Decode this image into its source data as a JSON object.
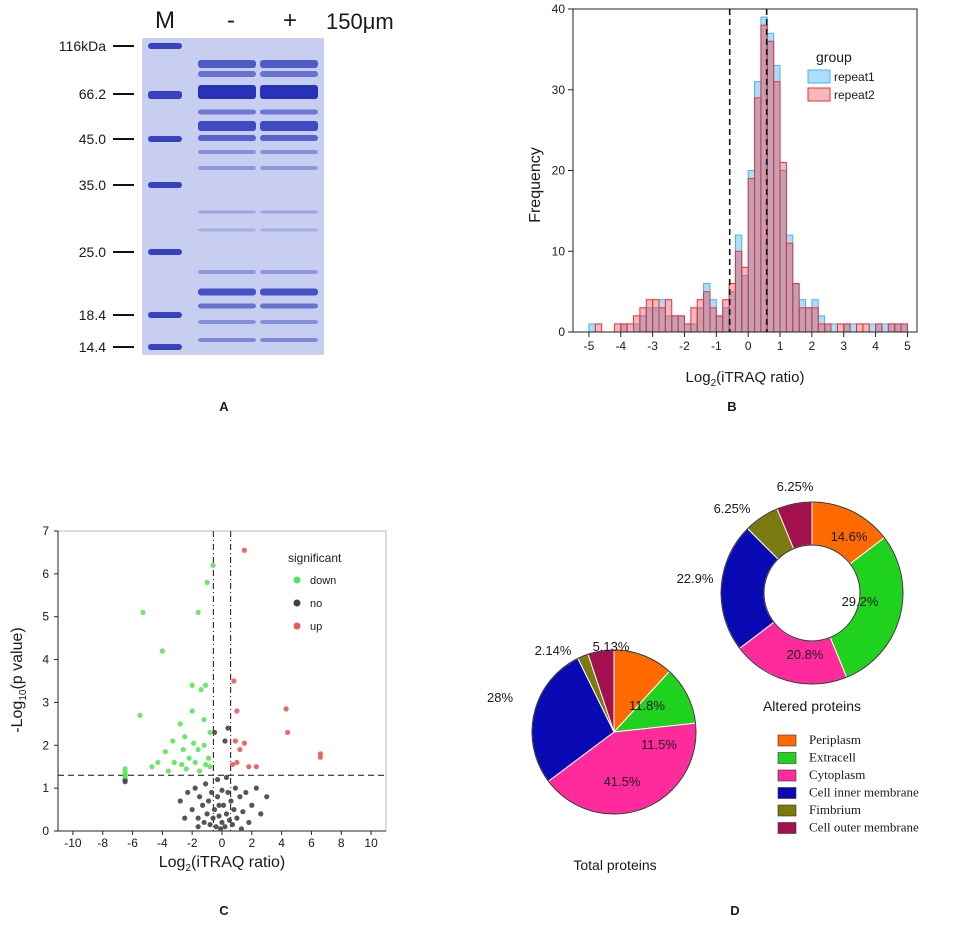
{
  "panel_labels": {
    "A": "A",
    "B": "B",
    "C": "C",
    "D": "D"
  },
  "colors": {
    "gel_bg": "#c7cef0",
    "band": "#2633b8",
    "repeat1": "#4ab4f0",
    "repeat2": "#e8323c",
    "down": "#59e559",
    "no": "#444444",
    "up": "#ec5858",
    "Periplasm": "#ff6a00",
    "Extracell": "#1ed21e",
    "Cytoplasm": "#ff2a9c",
    "Cell inner membrane": "#0a0ab4",
    "Fimbrium": "#7a7a0e",
    "Cell outer membrane": "#a3104e"
  },
  "gel": {
    "header": {
      "marker": "M",
      "minus": "-",
      "plus": "+",
      "conc": "150μm"
    },
    "markers": [
      "116kDa",
      "66.2",
      "45.0",
      "35.0",
      "25.0",
      "18.4",
      "14.4"
    ]
  },
  "chart_data": [
    {
      "type": "bar",
      "title": "",
      "xlabel_main": "Log",
      "xlabel_sub": "2",
      "xlabel_tail": "(iTRAQ ratio)",
      "ylabel": "Frequency",
      "xlim": [
        -5.5,
        5.3
      ],
      "ylim": [
        0,
        40
      ],
      "xticks": [
        "-5",
        "-4",
        "-3",
        "-2",
        "-1",
        "0",
        "1",
        "2",
        "3",
        "4",
        "5"
      ],
      "yticks": [
        "0",
        "10",
        "20",
        "30",
        "40"
      ],
      "vlines": [
        -0.58,
        0.58
      ],
      "legend": {
        "title": "group",
        "entries": [
          "repeat1",
          "repeat2"
        ]
      },
      "bin_width": 0.2,
      "series": [
        {
          "name": "repeat1",
          "bin_start": -5.0,
          "values": [
            1,
            0,
            0,
            0,
            0,
            1,
            0,
            1,
            2,
            3,
            3,
            4,
            2,
            2,
            2,
            1,
            1,
            3,
            6,
            4,
            2,
            3,
            5,
            12,
            7,
            20,
            31,
            39,
            37,
            33,
            20,
            12,
            6,
            4,
            3,
            4,
            2,
            1,
            1,
            0,
            1,
            1,
            0,
            0,
            1,
            1,
            1,
            1,
            1,
            1
          ]
        },
        {
          "name": "repeat2",
          "bin_start": -5.0,
          "values": [
            0,
            1,
            0,
            0,
            1,
            1,
            1,
            2,
            3,
            4,
            4,
            3,
            4,
            2,
            2,
            1,
            3,
            4,
            5,
            3,
            2,
            4,
            6,
            10,
            8,
            19,
            29,
            38,
            36,
            31,
            21,
            11,
            6,
            3,
            3,
            3,
            1,
            1,
            0,
            1,
            1,
            0,
            1,
            1,
            0,
            1,
            0,
            1,
            1,
            1
          ]
        }
      ]
    },
    {
      "type": "scatter",
      "title": "",
      "xlabel_main": "Log",
      "xlabel_sub": "2",
      "xlabel_tail": "(iTRAQ ratio)",
      "ylabel_main": "-Log",
      "ylabel_sub": "10",
      "ylabel_tail": "(p value)",
      "xlim": [
        -11,
        11
      ],
      "ylim": [
        0,
        7
      ],
      "xticks": [
        "-10",
        "-8",
        "-6",
        "-4",
        "-2",
        "0",
        "2",
        "4",
        "6",
        "8",
        "10"
      ],
      "yticks": [
        "0",
        "1",
        "2",
        "3",
        "4",
        "5",
        "6",
        "7"
      ],
      "vlines": [
        -0.58,
        0.58
      ],
      "hline": 1.3,
      "legend": {
        "title": "significant",
        "entries": [
          "down",
          "no",
          "up"
        ]
      },
      "series": [
        {
          "name": "down",
          "points": [
            [
              -5.3,
              5.1
            ],
            [
              -4.0,
              4.2
            ],
            [
              -5.5,
              2.7
            ],
            [
              -6.5,
              1.45
            ],
            [
              -6.5,
              1.38
            ],
            [
              -6.5,
              1.32
            ],
            [
              -6.5,
              1.27
            ],
            [
              -1.0,
              5.8
            ],
            [
              -1.6,
              5.1
            ],
            [
              -0.6,
              6.2
            ],
            [
              -2.0,
              3.4
            ],
            [
              -1.4,
              3.3
            ],
            [
              -1.1,
              3.4
            ],
            [
              -2.8,
              2.5
            ],
            [
              -3.3,
              2.1
            ],
            [
              -2.5,
              2.2
            ],
            [
              -1.9,
              2.05
            ],
            [
              -1.2,
              2.0
            ],
            [
              -0.8,
              2.3
            ],
            [
              -3.2,
              1.6
            ],
            [
              -2.7,
              1.55
            ],
            [
              -2.2,
              1.7
            ],
            [
              -1.8,
              1.6
            ],
            [
              -1.1,
              1.55
            ],
            [
              -0.8,
              1.5
            ],
            [
              -3.6,
              1.4
            ],
            [
              -2.4,
              1.45
            ],
            [
              -1.5,
              1.4
            ],
            [
              -4.3,
              1.6
            ],
            [
              -3.8,
              1.85
            ],
            [
              -2.6,
              1.9
            ],
            [
              -1.6,
              1.9
            ],
            [
              -0.9,
              1.7
            ],
            [
              -4.7,
              1.5
            ],
            [
              -1.2,
              2.6
            ],
            [
              -2.0,
              2.8
            ]
          ]
        },
        {
          "name": "no",
          "points": [
            [
              -6.5,
              1.2
            ],
            [
              -6.5,
              1.15
            ],
            [
              -2.8,
              0.7
            ],
            [
              -2.3,
              0.9
            ],
            [
              -2.0,
              0.5
            ],
            [
              -1.8,
              1.0
            ],
            [
              -1.6,
              0.3
            ],
            [
              -1.5,
              0.8
            ],
            [
              -1.3,
              0.6
            ],
            [
              -1.2,
              0.2
            ],
            [
              -1.1,
              1.1
            ],
            [
              -1.0,
              0.4
            ],
            [
              -0.9,
              0.7
            ],
            [
              -0.8,
              0.15
            ],
            [
              -0.7,
              0.9
            ],
            [
              -0.6,
              0.3
            ],
            [
              -0.5,
              0.5
            ],
            [
              -0.4,
              0.1
            ],
            [
              -0.3,
              0.8
            ],
            [
              -0.2,
              0.35
            ],
            [
              -0.1,
              0.05
            ],
            [
              0.0,
              0.2
            ],
            [
              0.1,
              0.6
            ],
            [
              0.2,
              0.1
            ],
            [
              0.3,
              0.4
            ],
            [
              0.4,
              0.9
            ],
            [
              0.5,
              0.25
            ],
            [
              0.6,
              0.7
            ],
            [
              0.7,
              0.15
            ],
            [
              0.8,
              0.5
            ],
            [
              0.9,
              1.0
            ],
            [
              1.0,
              0.3
            ],
            [
              1.2,
              0.8
            ],
            [
              1.4,
              0.45
            ],
            [
              1.6,
              0.9
            ],
            [
              1.8,
              0.2
            ],
            [
              2.0,
              0.6
            ],
            [
              2.3,
              1.0
            ],
            [
              2.6,
              0.4
            ],
            [
              3.0,
              0.8
            ],
            [
              -0.3,
              1.2
            ],
            [
              0.3,
              1.25
            ],
            [
              -0.5,
              2.3
            ],
            [
              0.2,
              2.1
            ],
            [
              0.4,
              2.4
            ],
            [
              -1.6,
              0.1
            ],
            [
              1.3,
              0.05
            ],
            [
              -0.2,
              0.6
            ],
            [
              0.0,
              0.95
            ],
            [
              -2.5,
              0.3
            ]
          ]
        },
        {
          "name": "up",
          "points": [
            [
              1.5,
              6.55
            ],
            [
              0.8,
              3.5
            ],
            [
              1.0,
              2.8
            ],
            [
              0.9,
              2.1
            ],
            [
              1.5,
              2.05
            ],
            [
              1.2,
              1.9
            ],
            [
              1.0,
              1.6
            ],
            [
              1.8,
              1.5
            ],
            [
              4.3,
              2.85
            ],
            [
              4.4,
              2.3
            ],
            [
              6.6,
              1.8
            ],
            [
              6.6,
              1.72
            ],
            [
              0.7,
              1.55
            ],
            [
              2.3,
              1.5
            ]
          ]
        }
      ]
    },
    {
      "type": "pie",
      "title": "Altered proteins",
      "donut": true,
      "slices": [
        {
          "label": "Periplasm",
          "value": 14.6,
          "text": "14.6%"
        },
        {
          "label": "Extracell",
          "value": 29.2,
          "text": "29.2%"
        },
        {
          "label": "Cytoplasm",
          "value": 20.8,
          "text": "20.8%"
        },
        {
          "label": "Cell inner membrane",
          "value": 22.9,
          "text": "22.9%"
        },
        {
          "label": "Fimbrium",
          "value": 6.25,
          "text": "6.25%"
        },
        {
          "label": "Cell outer membrane",
          "value": 6.25,
          "text": "6.25%"
        }
      ]
    },
    {
      "type": "pie",
      "title": "Total proteins",
      "donut": false,
      "slices": [
        {
          "label": "Periplasm",
          "value": 11.8,
          "text": "11.8%"
        },
        {
          "label": "Extracell",
          "value": 11.5,
          "text": "11.5%"
        },
        {
          "label": "Cytoplasm",
          "value": 41.5,
          "text": "41.5%"
        },
        {
          "label": "Cell inner membrane",
          "value": 28,
          "text": "28%"
        },
        {
          "label": "Fimbrium",
          "value": 2.14,
          "text": "2.14%"
        },
        {
          "label": "Cell outer membrane",
          "value": 5.13,
          "text": "5.13%"
        }
      ]
    }
  ],
  "pie_legend": [
    "Periplasm",
    "Extracell",
    "Cytoplasm",
    "Cell inner membrane",
    "Fimbrium",
    "Cell outer membrane"
  ]
}
